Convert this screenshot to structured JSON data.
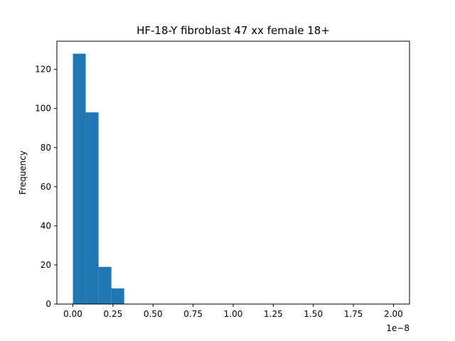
{
  "chart_data": {
    "type": "bar",
    "title": "HF-18-Y fibroblast 47 xx female 18+",
    "xlabel": "",
    "ylabel": "Frequency",
    "x_offset_label": "1e−8",
    "bar_color": "#1f77b4",
    "bins": [
      {
        "start": 0.0,
        "end": 0.08,
        "value": 128
      },
      {
        "start": 0.08,
        "end": 0.16,
        "value": 98
      },
      {
        "start": 0.16,
        "end": 0.24,
        "value": 19
      },
      {
        "start": 0.24,
        "end": 0.32,
        "value": 8
      }
    ],
    "xlim": [
      -0.1,
      2.1
    ],
    "ylim": [
      0,
      134.4
    ],
    "xticks": [
      {
        "value": 0.0,
        "label": "0.00"
      },
      {
        "value": 0.25,
        "label": "0.25"
      },
      {
        "value": 0.5,
        "label": "0.50"
      },
      {
        "value": 0.75,
        "label": "0.75"
      },
      {
        "value": 1.0,
        "label": "1.00"
      },
      {
        "value": 1.25,
        "label": "1.25"
      },
      {
        "value": 1.5,
        "label": "1.50"
      },
      {
        "value": 1.75,
        "label": "1.75"
      },
      {
        "value": 2.0,
        "label": "2.00"
      }
    ],
    "yticks": [
      {
        "value": 0,
        "label": "0"
      },
      {
        "value": 20,
        "label": "20"
      },
      {
        "value": 40,
        "label": "40"
      },
      {
        "value": 60,
        "label": "60"
      },
      {
        "value": 80,
        "label": "80"
      },
      {
        "value": 100,
        "label": "100"
      },
      {
        "value": 120,
        "label": "120"
      }
    ],
    "grid": false,
    "legend": "none"
  }
}
